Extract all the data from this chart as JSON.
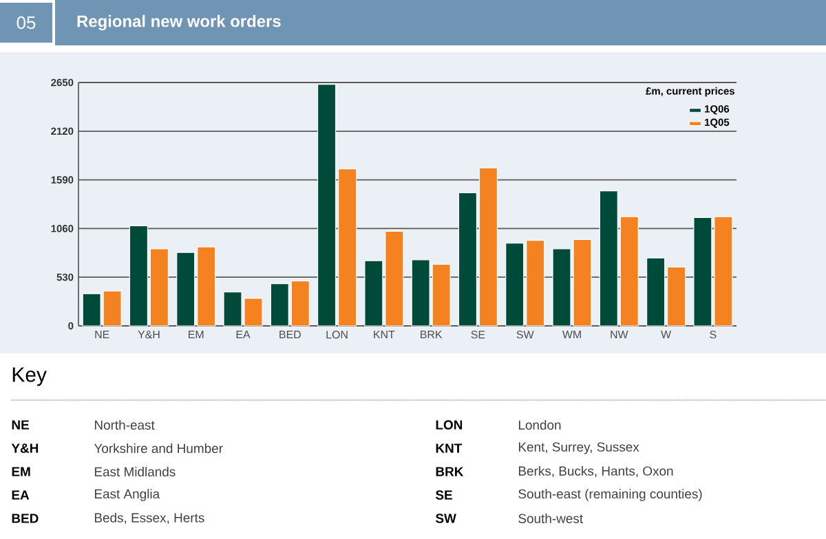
{
  "chart_data": {
    "type": "bar",
    "title": "Regional new work orders",
    "legend_title": "£m, current prices",
    "categories": [
      "NE",
      "Y&H",
      "EM",
      "EA",
      "BED",
      "LON",
      "KNT",
      "BRK",
      "SE",
      "SW",
      "WM",
      "NW",
      "W",
      "S"
    ],
    "series": [
      {
        "name": "1Q06",
        "color": "#004a3a",
        "values": [
          350,
          1090,
          800,
          370,
          460,
          2630,
          710,
          720,
          1450,
          900,
          840,
          1470,
          740,
          1180
        ]
      },
      {
        "name": "1Q05",
        "color": "#f58220",
        "values": [
          380,
          840,
          860,
          300,
          490,
          1710,
          1030,
          670,
          1720,
          930,
          940,
          1190,
          640,
          1190
        ]
      }
    ],
    "ylim": [
      0,
      2650
    ],
    "yticks": [
      0,
      530,
      1060,
      1590,
      2120,
      2650
    ],
    "grid": "y",
    "legend": "top right",
    "annotations": [
      "05",
      "Key",
      "NE",
      "North-east",
      "Y&H",
      "Yorkshire and Humber",
      "EM",
      "East Midlands",
      "EA",
      "East Anglia",
      "BED",
      "Beds, Essex, Herts",
      "LON",
      "London",
      "KNT",
      "Kent, Surrey, Sussex",
      "BRK",
      "Berks, Bucks, Hants, Oxon",
      "SE",
      "South-east (remaining counties)",
      "SW",
      "South-west"
    ]
  }
}
